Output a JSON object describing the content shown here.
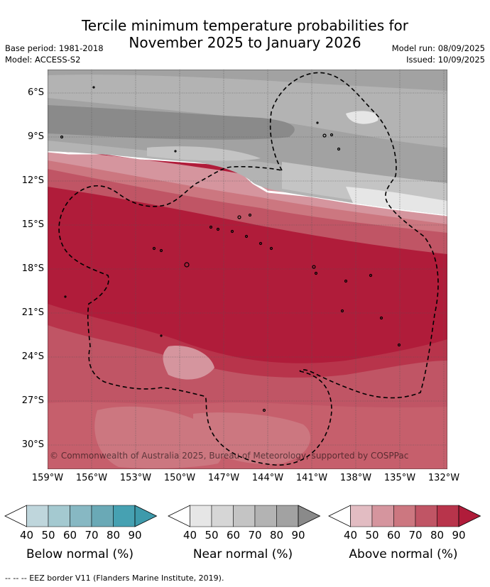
{
  "title_line1": "Tercile minimum temperature probabilities for",
  "title_line2": "November 2025 to January 2026",
  "meta_left": [
    "Base period: 1981-2018",
    "Model: ACCESS-S2"
  ],
  "meta_right": [
    "Model run: 08/09/2025",
    "Issued: 10/09/2025"
  ],
  "lat_labels": [
    "6°S",
    "9°S",
    "12°S",
    "15°S",
    "18°S",
    "21°S",
    "24°S",
    "27°S",
    "30°S"
  ],
  "lon_labels": [
    "159°W",
    "156°W",
    "153°W",
    "150°W",
    "147°W",
    "144°W",
    "141°W",
    "138°W",
    "135°W",
    "132°W"
  ],
  "copyright": "© Commonwealth of Australia 2025, Bureau of Meteorology, supported by COSPPac",
  "colorbars": [
    {
      "label": "Below normal (%)",
      "ticks": [
        "40",
        "50",
        "60",
        "70",
        "80",
        "90"
      ],
      "colors": [
        "#ffffff",
        "#bfd6dc",
        "#a4c9d0",
        "#87b8c3",
        "#6aa9b6",
        "#46a1b2",
        "#3e9aab"
      ]
    },
    {
      "label": "Near normal (%)",
      "ticks": [
        "40",
        "50",
        "60",
        "70",
        "80",
        "90"
      ],
      "colors": [
        "#ffffff",
        "#e6e6e6",
        "#d6d6d6",
        "#c4c4c4",
        "#b3b3b3",
        "#a2a2a2",
        "#8a8a8a"
      ]
    },
    {
      "label": "Above normal (%)",
      "ticks": [
        "40",
        "50",
        "60",
        "70",
        "80",
        "90"
      ],
      "colors": [
        "#ffffff",
        "#e2bcc2",
        "#d5959e",
        "#cc7780",
        "#c05565",
        "#b8344b",
        "#b01c3a"
      ]
    }
  ],
  "footer": "-- -- -- EEZ border V11 (Flanders Marine Institute, 2019)."
}
